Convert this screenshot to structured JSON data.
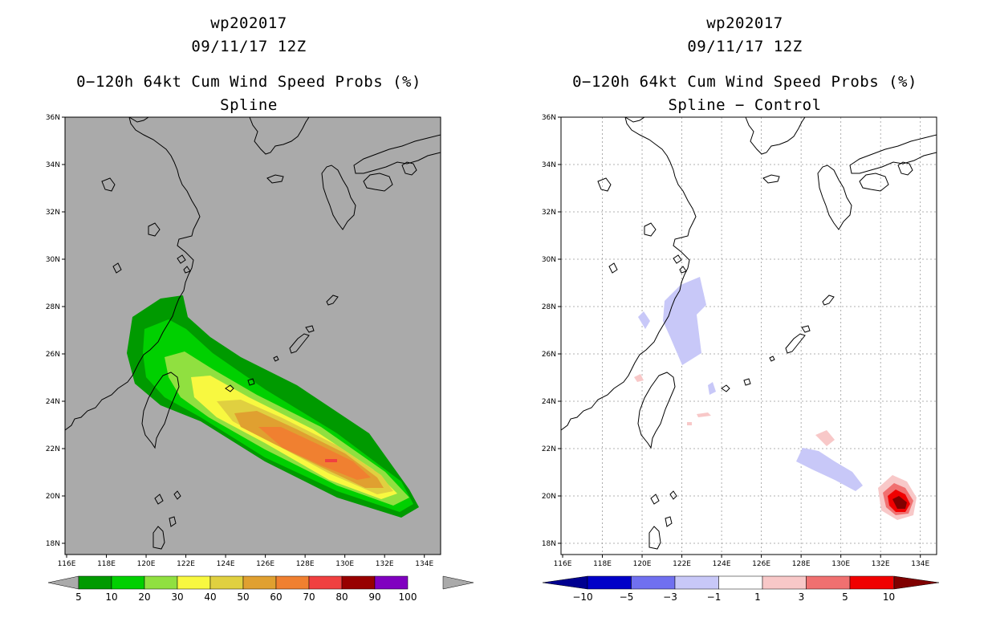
{
  "left": {
    "title1": "wp202017",
    "title2": "09/11/17 12Z",
    "title3": "0−120h 64kt Cum Wind Speed Probs (%)",
    "title4": "Spline"
  },
  "right": {
    "title1": "wp202017",
    "title2": "09/11/17 12Z",
    "title3": "0−120h 64kt Cum Wind Speed Probs (%)",
    "title4": "Spline − Control"
  },
  "axes": {
    "lon_labels": [
      "116E",
      "118E",
      "120E",
      "122E",
      "124E",
      "126E",
      "128E",
      "130E",
      "132E",
      "134E"
    ],
    "lat_labels": [
      "18N",
      "20N",
      "22N",
      "24N",
      "26N",
      "28N",
      "30N",
      "32N",
      "34N",
      "36N"
    ]
  },
  "left_colorbar": {
    "labels": [
      "5",
      "10",
      "20",
      "30",
      "40",
      "50",
      "60",
      "70",
      "80",
      "90",
      "100"
    ],
    "colors": [
      "#009a00",
      "#00d000",
      "#90e040",
      "#f8f840",
      "#e0d040",
      "#e0a030",
      "#f08030",
      "#f04040",
      "#980000",
      "#8000c0"
    ]
  },
  "right_colorbar": {
    "labels": [
      "−10",
      "−5",
      "−3",
      "−1",
      "1",
      "3",
      "5",
      "10"
    ],
    "colors": [
      "#0000c8",
      "#7070f0",
      "#c8c8f8",
      "#ffffff",
      "#f8c8c8",
      "#f07070",
      "#f00000"
    ],
    "low_color": "#000090",
    "high_color": "#800000"
  },
  "colors": {
    "map_bg_left": "#aaaaaa",
    "grid": "#999999"
  }
}
